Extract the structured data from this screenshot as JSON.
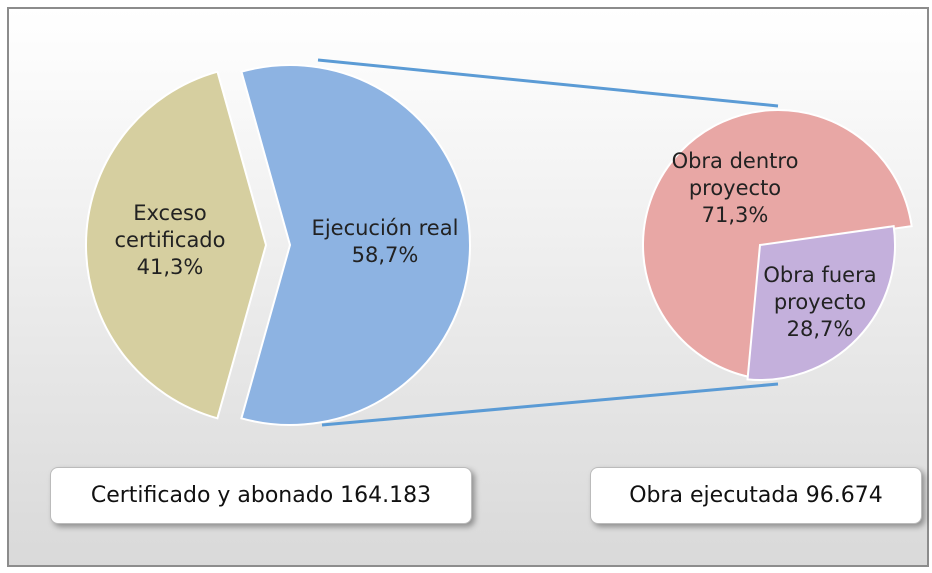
{
  "chart_data": [
    {
      "type": "pie",
      "categories": [
        "Exceso certificado",
        "Ejecución real"
      ],
      "values": [
        41.3,
        58.7
      ],
      "value_labels": [
        "41,3%",
        "58,7%"
      ],
      "colors": [
        "#d6cfa0",
        "#8db3e2"
      ],
      "annotation": "Certificado y abonado 164.183"
    },
    {
      "type": "pie",
      "categories": [
        "Obra dentro proyecto",
        "Obra fuera proyecto"
      ],
      "values": [
        71.3,
        28.7
      ],
      "value_labels": [
        "71,3%",
        "28,7%"
      ],
      "colors": [
        "#e8a7a5",
        "#c4b0dc"
      ],
      "annotation": "Obra ejecutada 96.674"
    }
  ]
}
